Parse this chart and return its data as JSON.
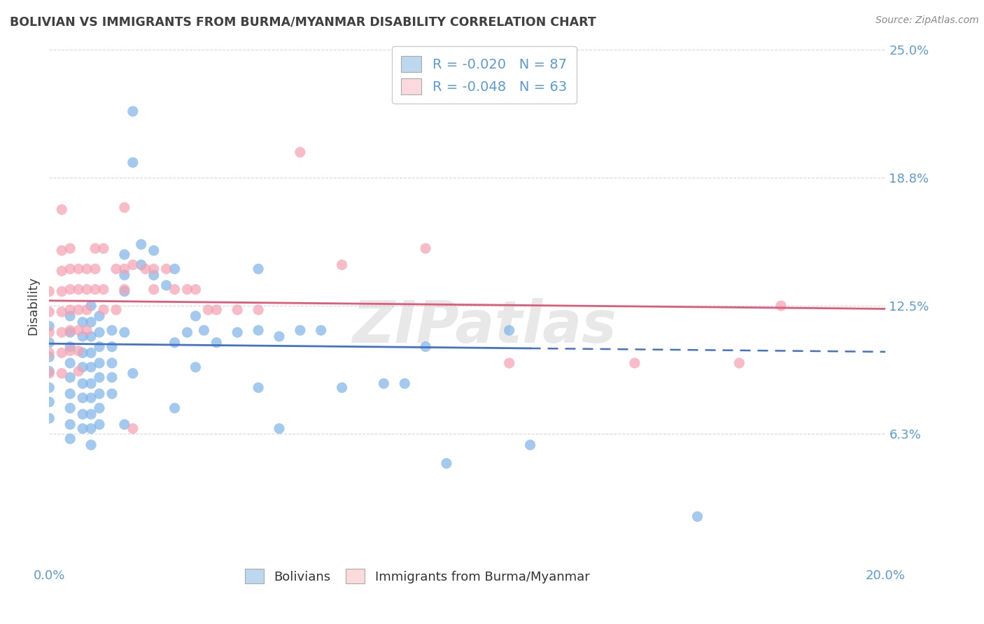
{
  "title": "BOLIVIAN VS IMMIGRANTS FROM BURMA/MYANMAR DISABILITY CORRELATION CHART",
  "source": "Source: ZipAtlas.com",
  "ylabel": "Disability",
  "ylim": [
    0.0,
    0.25
  ],
  "xlim": [
    0.0,
    0.2
  ],
  "yticks": [
    0.0,
    0.0625,
    0.125,
    0.1875,
    0.25
  ],
  "ytick_labels": [
    "",
    "6.3%",
    "12.5%",
    "18.8%",
    "25.0%"
  ],
  "r_blue": -0.02,
  "n_blue": 87,
  "r_pink": -0.048,
  "n_pink": 63,
  "blue_color": "#7EB3E8",
  "pink_color": "#F4A0B0",
  "line_blue": "#4472C4",
  "line_pink": "#E05A7A",
  "legend_box_blue": "#BDD7EE",
  "legend_box_pink": "#FADADD",
  "blue_scatter": [
    [
      0.0,
      0.115
    ],
    [
      0.0,
      0.107
    ],
    [
      0.0,
      0.1
    ],
    [
      0.0,
      0.093
    ],
    [
      0.0,
      0.085
    ],
    [
      0.0,
      0.078
    ],
    [
      0.0,
      0.07
    ],
    [
      0.005,
      0.12
    ],
    [
      0.005,
      0.112
    ],
    [
      0.005,
      0.105
    ],
    [
      0.005,
      0.097
    ],
    [
      0.005,
      0.09
    ],
    [
      0.005,
      0.082
    ],
    [
      0.005,
      0.075
    ],
    [
      0.005,
      0.067
    ],
    [
      0.005,
      0.06
    ],
    [
      0.008,
      0.117
    ],
    [
      0.008,
      0.11
    ],
    [
      0.008,
      0.102
    ],
    [
      0.008,
      0.095
    ],
    [
      0.008,
      0.087
    ],
    [
      0.008,
      0.08
    ],
    [
      0.008,
      0.072
    ],
    [
      0.008,
      0.065
    ],
    [
      0.01,
      0.125
    ],
    [
      0.01,
      0.117
    ],
    [
      0.01,
      0.11
    ],
    [
      0.01,
      0.102
    ],
    [
      0.01,
      0.095
    ],
    [
      0.01,
      0.087
    ],
    [
      0.01,
      0.08
    ],
    [
      0.01,
      0.072
    ],
    [
      0.01,
      0.065
    ],
    [
      0.01,
      0.057
    ],
    [
      0.012,
      0.12
    ],
    [
      0.012,
      0.112
    ],
    [
      0.012,
      0.105
    ],
    [
      0.012,
      0.097
    ],
    [
      0.012,
      0.09
    ],
    [
      0.012,
      0.082
    ],
    [
      0.012,
      0.075
    ],
    [
      0.012,
      0.067
    ],
    [
      0.015,
      0.113
    ],
    [
      0.015,
      0.105
    ],
    [
      0.015,
      0.097
    ],
    [
      0.015,
      0.09
    ],
    [
      0.015,
      0.082
    ],
    [
      0.018,
      0.15
    ],
    [
      0.018,
      0.14
    ],
    [
      0.018,
      0.132
    ],
    [
      0.018,
      0.112
    ],
    [
      0.018,
      0.067
    ],
    [
      0.02,
      0.22
    ],
    [
      0.02,
      0.195
    ],
    [
      0.02,
      0.092
    ],
    [
      0.022,
      0.155
    ],
    [
      0.022,
      0.145
    ],
    [
      0.025,
      0.152
    ],
    [
      0.025,
      0.14
    ],
    [
      0.028,
      0.135
    ],
    [
      0.03,
      0.143
    ],
    [
      0.03,
      0.107
    ],
    [
      0.03,
      0.075
    ],
    [
      0.033,
      0.112
    ],
    [
      0.035,
      0.12
    ],
    [
      0.035,
      0.095
    ],
    [
      0.037,
      0.113
    ],
    [
      0.04,
      0.107
    ],
    [
      0.045,
      0.112
    ],
    [
      0.05,
      0.143
    ],
    [
      0.05,
      0.113
    ],
    [
      0.05,
      0.085
    ],
    [
      0.055,
      0.11
    ],
    [
      0.055,
      0.065
    ],
    [
      0.06,
      0.113
    ],
    [
      0.065,
      0.113
    ],
    [
      0.07,
      0.085
    ],
    [
      0.08,
      0.087
    ],
    [
      0.085,
      0.087
    ],
    [
      0.09,
      0.105
    ],
    [
      0.095,
      0.048
    ],
    [
      0.11,
      0.113
    ],
    [
      0.115,
      0.057
    ],
    [
      0.155,
      0.022
    ]
  ],
  "pink_scatter": [
    [
      0.0,
      0.132
    ],
    [
      0.0,
      0.122
    ],
    [
      0.0,
      0.112
    ],
    [
      0.0,
      0.102
    ],
    [
      0.0,
      0.092
    ],
    [
      0.003,
      0.172
    ],
    [
      0.003,
      0.152
    ],
    [
      0.003,
      0.142
    ],
    [
      0.003,
      0.132
    ],
    [
      0.003,
      0.122
    ],
    [
      0.003,
      0.112
    ],
    [
      0.003,
      0.102
    ],
    [
      0.003,
      0.092
    ],
    [
      0.005,
      0.153
    ],
    [
      0.005,
      0.143
    ],
    [
      0.005,
      0.133
    ],
    [
      0.005,
      0.123
    ],
    [
      0.005,
      0.113
    ],
    [
      0.005,
      0.103
    ],
    [
      0.007,
      0.143
    ],
    [
      0.007,
      0.133
    ],
    [
      0.007,
      0.123
    ],
    [
      0.007,
      0.113
    ],
    [
      0.007,
      0.103
    ],
    [
      0.007,
      0.093
    ],
    [
      0.009,
      0.143
    ],
    [
      0.009,
      0.133
    ],
    [
      0.009,
      0.123
    ],
    [
      0.009,
      0.113
    ],
    [
      0.011,
      0.153
    ],
    [
      0.011,
      0.143
    ],
    [
      0.011,
      0.133
    ],
    [
      0.013,
      0.153
    ],
    [
      0.013,
      0.133
    ],
    [
      0.013,
      0.123
    ],
    [
      0.016,
      0.143
    ],
    [
      0.016,
      0.123
    ],
    [
      0.018,
      0.173
    ],
    [
      0.018,
      0.143
    ],
    [
      0.018,
      0.133
    ],
    [
      0.02,
      0.145
    ],
    [
      0.02,
      0.065
    ],
    [
      0.023,
      0.143
    ],
    [
      0.025,
      0.143
    ],
    [
      0.025,
      0.133
    ],
    [
      0.028,
      0.143
    ],
    [
      0.03,
      0.133
    ],
    [
      0.033,
      0.133
    ],
    [
      0.035,
      0.133
    ],
    [
      0.038,
      0.123
    ],
    [
      0.04,
      0.123
    ],
    [
      0.045,
      0.123
    ],
    [
      0.05,
      0.123
    ],
    [
      0.06,
      0.2
    ],
    [
      0.07,
      0.145
    ],
    [
      0.09,
      0.153
    ],
    [
      0.11,
      0.097
    ],
    [
      0.14,
      0.097
    ],
    [
      0.165,
      0.097
    ],
    [
      0.175,
      0.125
    ]
  ],
  "bg_color": "#FFFFFF",
  "grid_color": "#CCCCCC",
  "title_color": "#404040",
  "tick_label_color": "#5B9BD5",
  "blue_line_solid_end": 0.115,
  "blue_line_start_y": 0.1065,
  "blue_line_end_y": 0.1025,
  "pink_line_start_y": 0.1275,
  "pink_line_end_y": 0.1235
}
